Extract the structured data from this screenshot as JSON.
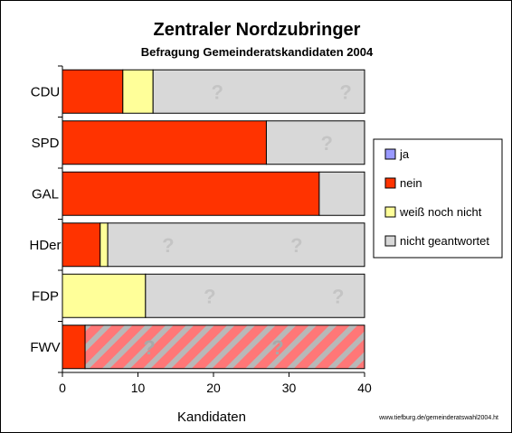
{
  "chart_data": {
    "type": "bar",
    "orientation": "horizontal",
    "stacked": true,
    "title": "Zentraler Nordzubringer",
    "subtitle": "Befragung Gemeinderatskandidaten 2004",
    "xlabel": "Kandidaten",
    "ylabel": "",
    "xlim": [
      0,
      40
    ],
    "xticks": [
      0,
      10,
      20,
      30,
      40
    ],
    "grid": false,
    "legend_position": "right",
    "categories": [
      "CDU",
      "SPD",
      "GAL",
      "HDer",
      "FDP",
      "FWV"
    ],
    "series": [
      {
        "name": "ja",
        "color": "#9999ff",
        "values": [
          0,
          0,
          0,
          0,
          0,
          0
        ]
      },
      {
        "name": "nein",
        "color": "#ff3300",
        "values": [
          8,
          27,
          34,
          5,
          0,
          3
        ]
      },
      {
        "name": "weiß noch nicht",
        "color": "#ffff99",
        "values": [
          4,
          0,
          0,
          1,
          11,
          0
        ]
      },
      {
        "name": "nicht geantwortet",
        "color": "#d8d8d8",
        "values": [
          28,
          13,
          6,
          34,
          29,
          37
        ]
      }
    ],
    "question_mark": "?",
    "question_marks": [
      {
        "category": "CDU",
        "x": [
          20.5,
          37.5
        ]
      },
      {
        "category": "SPD",
        "x": [
          35
        ]
      },
      {
        "category": "HDer",
        "x": [
          14,
          31
        ]
      },
      {
        "category": "FDP",
        "x": [
          19.5,
          36.5
        ]
      },
      {
        "category": "FWV",
        "x": [
          11.5,
          28.5
        ]
      }
    ],
    "hatched_category": "FWV",
    "hatch_colors": {
      "background": "#ff7777",
      "stripe": "#b8b8b8"
    }
  },
  "source_url": "www.tiefburg.de/gemeinderatswahl2004.ht"
}
